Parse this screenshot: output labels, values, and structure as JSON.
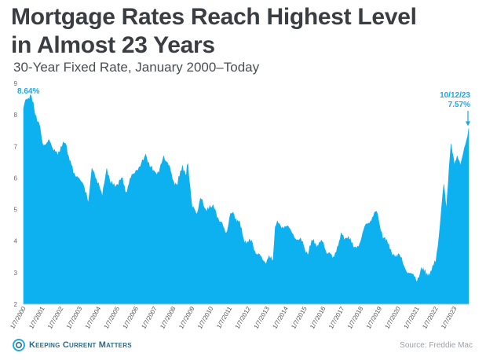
{
  "title_line1": "Mortgage Rates Reach Highest Level",
  "title_line2": "in Almost 23 Years",
  "subtitle": "30-Year Fixed Rate, January 2000–Today",
  "brand": "Keeping Current Matters",
  "source": "Source: Freddie Mac",
  "colors": {
    "fill": "#0db1ef",
    "accent": "#1aa7ea",
    "title": "#3a3e42"
  },
  "chart_data": {
    "type": "area",
    "title": "Mortgage Rates Reach Highest Level in Almost 23 Years",
    "subtitle": "30-Year Fixed Rate, January 2000–Today",
    "xlabel": "",
    "ylabel": "",
    "ylim": [
      2,
      9
    ],
    "yticks": [
      "2",
      "3",
      "4",
      "5",
      "6",
      "7",
      "8",
      "9"
    ],
    "xlim": [
      "2000-01-07",
      "2023-10-12"
    ],
    "xticks": [
      "1/7/2000",
      "1/7/2001",
      "1/7/2002",
      "1/7/2003",
      "1/7/2004",
      "1/7/2005",
      "1/7/2006",
      "1/7/2007",
      "1/7/2008",
      "1/7/2009",
      "1/7/2010",
      "1/7/2011",
      "1/7/2012",
      "1/7/2013",
      "1/7/2014",
      "1/7/2015",
      "1/7/2016",
      "1/7/2017",
      "1/7/2018",
      "1/7/2019",
      "1/7/2020",
      "1/7/2021",
      "1/7/2022",
      "1/7/2023"
    ],
    "grid": false,
    "series": [
      {
        "name": "",
        "x": [
          "2000-01-07",
          "2000-03-01",
          "2000-05-19",
          "2000-08-01",
          "2000-11-01",
          "2001-01-07",
          "2001-03-15",
          "2001-06-01",
          "2001-09-01",
          "2001-11-01",
          "2002-01-07",
          "2002-04-01",
          "2002-06-01",
          "2002-09-01",
          "2002-11-15",
          "2003-01-07",
          "2003-03-15",
          "2003-06-20",
          "2003-07-20",
          "2003-09-01",
          "2004-01-07",
          "2004-03-20",
          "2004-06-15",
          "2004-09-01",
          "2005-01-07",
          "2005-04-01",
          "2005-07-01",
          "2005-10-01",
          "2006-01-07",
          "2006-04-01",
          "2006-07-15",
          "2006-10-01",
          "2007-01-07",
          "2007-04-01",
          "2007-07-01",
          "2007-10-01",
          "2008-01-07",
          "2008-04-01",
          "2008-07-01",
          "2008-09-15",
          "2008-10-15",
          "2009-01-07",
          "2009-04-01",
          "2009-06-15",
          "2009-09-01",
          "2010-01-07",
          "2010-04-01",
          "2010-07-01",
          "2010-11-01",
          "2011-01-07",
          "2011-04-01",
          "2011-07-01",
          "2011-10-01",
          "2012-01-07",
          "2012-04-01",
          "2012-07-01",
          "2012-11-15",
          "2013-01-07",
          "2013-05-01",
          "2013-06-15",
          "2013-09-01",
          "2014-01-07",
          "2014-06-01",
          "2014-10-01",
          "2015-01-07",
          "2015-04-01",
          "2015-07-01",
          "2015-10-01",
          "2016-01-07",
          "2016-04-01",
          "2016-07-01",
          "2016-11-15",
          "2017-01-07",
          "2017-04-01",
          "2017-09-01",
          "2018-01-07",
          "2018-05-01",
          "2018-11-08",
          "2019-01-07",
          "2019-04-01",
          "2019-09-01",
          "2020-01-07",
          "2020-04-01",
          "2020-08-01",
          "2021-01-07",
          "2021-04-01",
          "2021-07-01",
          "2021-10-01",
          "2022-01-07",
          "2022-03-15",
          "2022-06-15",
          "2022-08-01",
          "2022-11-01",
          "2023-01-07",
          "2023-03-01",
          "2023-05-01",
          "2023-07-01",
          "2023-09-01",
          "2023-10-12"
        ],
        "values": [
          8.2,
          8.5,
          8.64,
          8.15,
          7.75,
          7.1,
          7.05,
          7.15,
          6.9,
          6.7,
          7.0,
          7.1,
          6.7,
          6.15,
          6.05,
          5.95,
          5.8,
          5.2,
          5.6,
          6.3,
          5.85,
          5.4,
          6.3,
          5.8,
          5.8,
          6.0,
          5.55,
          6.0,
          6.25,
          6.35,
          6.75,
          6.35,
          6.2,
          6.15,
          6.7,
          6.4,
          5.9,
          5.8,
          6.4,
          6.1,
          6.45,
          5.05,
          4.85,
          5.35,
          5.05,
          5.05,
          5.0,
          4.6,
          4.25,
          4.75,
          4.85,
          4.6,
          4.1,
          3.95,
          3.9,
          3.55,
          3.35,
          3.4,
          3.4,
          4.45,
          4.55,
          4.45,
          4.2,
          4.05,
          3.75,
          3.65,
          4.05,
          3.85,
          3.95,
          3.6,
          3.45,
          4.0,
          4.2,
          4.1,
          3.8,
          4.0,
          4.55,
          4.94,
          4.5,
          4.1,
          3.6,
          3.6,
          3.3,
          3.0,
          2.7,
          3.15,
          2.9,
          3.05,
          3.3,
          4.2,
          5.8,
          5.0,
          7.08,
          6.4,
          6.7,
          6.4,
          6.8,
          7.2,
          7.57
        ]
      }
    ],
    "annotations": [
      {
        "text": "8.64%",
        "x": "2000-05-19",
        "y": 8.64
      },
      {
        "text": "10/12/23",
        "x": "2023-10-12",
        "y": 7.57
      },
      {
        "text": "7.57%",
        "x": "2023-10-12",
        "y": 7.57
      }
    ]
  }
}
